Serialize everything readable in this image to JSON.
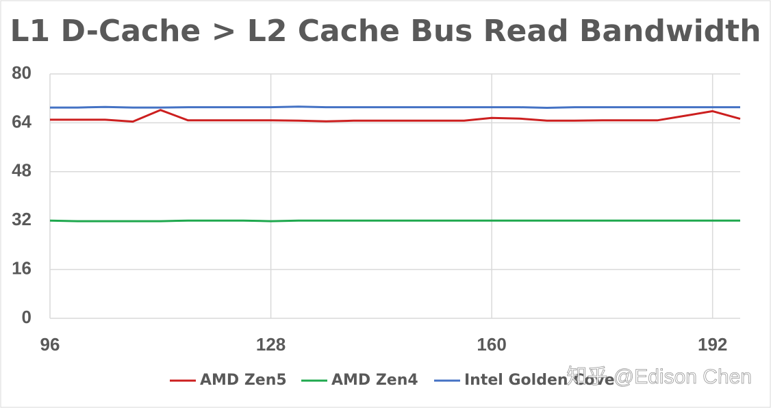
{
  "chart_data": {
    "type": "line",
    "title": "L1 D-Cache > L2 Cache Bus Read Bandwidth",
    "x": [
      96,
      100,
      104,
      108,
      112,
      116,
      120,
      124,
      128,
      132,
      136,
      140,
      144,
      148,
      152,
      156,
      160,
      164,
      168,
      172,
      176,
      180,
      184,
      188,
      192,
      196
    ],
    "series": [
      {
        "name": "AMD Zen5",
        "color": "#cc1f1f",
        "values": [
          65,
          65,
          65,
          64.4,
          68.2,
          64.8,
          64.8,
          64.8,
          64.8,
          64.7,
          64.5,
          64.7,
          64.7,
          64.7,
          64.7,
          64.7,
          65.6,
          65.4,
          64.7,
          64.7,
          64.8,
          64.8,
          64.8,
          66.3,
          67.8,
          65.3
        ]
      },
      {
        "name": "AMD Zen4",
        "color": "#1fa84e",
        "values": [
          32,
          31.8,
          31.8,
          31.8,
          31.8,
          32,
          32,
          32,
          31.8,
          32,
          32,
          32,
          32,
          32,
          32,
          32,
          32,
          32,
          32,
          32,
          32,
          32,
          32,
          32,
          32,
          32
        ]
      },
      {
        "name": "Intel Golden Cove",
        "color": "#4472c4",
        "values": [
          69,
          69,
          69.2,
          69,
          69,
          69.1,
          69.1,
          69.1,
          69.1,
          69.3,
          69.1,
          69.1,
          69.1,
          69.1,
          69.1,
          69.1,
          69.1,
          69.1,
          68.9,
          69.1,
          69.1,
          69.1,
          69.1,
          69.1,
          69.1,
          69.1
        ]
      }
    ],
    "xlim": [
      96,
      196
    ],
    "xticks": [
      96,
      128,
      160,
      192
    ],
    "ylim": [
      0,
      80
    ],
    "yticks": [
      0,
      16,
      32,
      48,
      64,
      80
    ],
    "grid": true,
    "legend": "bottom",
    "watermark": "知乎 @Edison Chen"
  }
}
